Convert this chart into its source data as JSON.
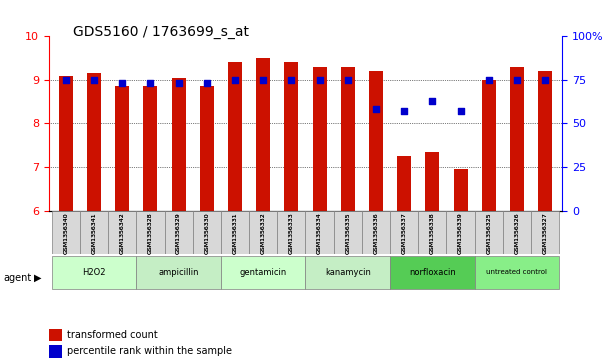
{
  "title": "GDS5160 / 1763699_s_at",
  "samples": [
    "GSM1356340",
    "GSM1356341",
    "GSM1356342",
    "GSM1356328",
    "GSM1356329",
    "GSM1356330",
    "GSM1356331",
    "GSM1356332",
    "GSM1356333",
    "GSM1356334",
    "GSM1356335",
    "GSM1356336",
    "GSM1356337",
    "GSM1356338",
    "GSM1356339",
    "GSM1356325",
    "GSM1356326",
    "GSM1356327"
  ],
  "transformed_count": [
    9.1,
    9.15,
    8.85,
    8.85,
    9.05,
    8.85,
    9.4,
    9.5,
    9.4,
    9.3,
    9.3,
    9.2,
    7.25,
    7.35,
    6.95,
    9.0,
    9.3,
    9.2
  ],
  "percentile_rank": [
    75,
    75,
    73,
    73,
    73,
    73,
    75,
    75,
    75,
    75,
    75,
    58,
    57,
    63,
    57,
    75,
    75,
    75
  ],
  "groups": [
    {
      "name": "H2O2",
      "start": 0,
      "end": 3,
      "color": "#ccffcc"
    },
    {
      "name": "ampicillin",
      "start": 3,
      "end": 6,
      "color": "#aaddaa"
    },
    {
      "name": "gentamicin",
      "start": 6,
      "end": 9,
      "color": "#ccffcc"
    },
    {
      "name": "kanamycin",
      "start": 9,
      "end": 12,
      "color": "#aaddaa"
    },
    {
      "name": "norfloxacin",
      "start": 12,
      "end": 15,
      "color": "#55cc55"
    },
    {
      "name": "untreated control",
      "start": 15,
      "end": 18,
      "color": "#88ee88"
    }
  ],
  "ylim_left": [
    6,
    10
  ],
  "ylim_right": [
    0,
    100
  ],
  "yticks_left": [
    6,
    7,
    8,
    9,
    10
  ],
  "yticks_right": [
    0,
    25,
    50,
    75,
    100
  ],
  "yticklabels_right": [
    "0",
    "25",
    "50",
    "75",
    "100%"
  ],
  "bar_color": "#cc1100",
  "dot_color": "#0000cc",
  "bar_width": 0.5,
  "bg_color": "#ffffff"
}
